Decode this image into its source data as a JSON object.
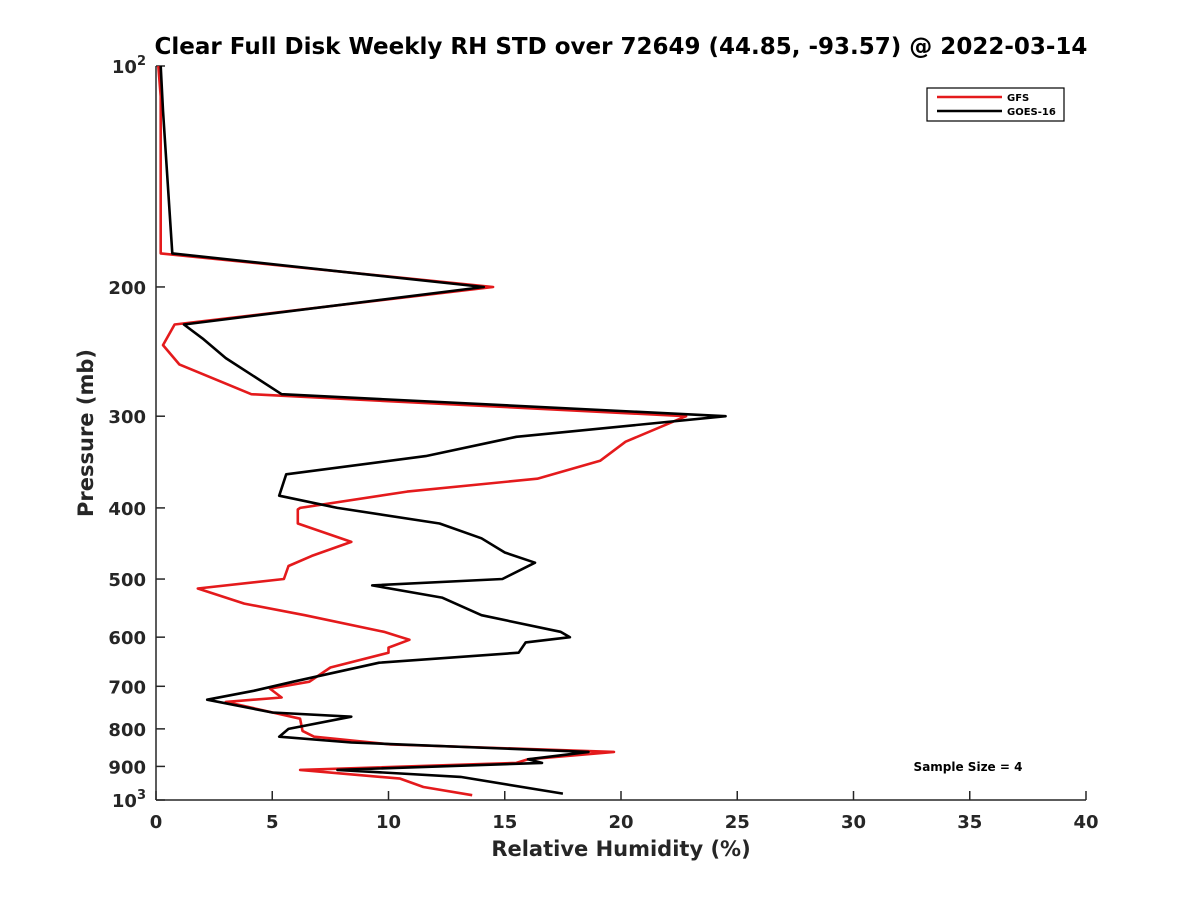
{
  "chart_data": {
    "type": "line",
    "title": "Clear Full Disk Weekly RH STD over 72649 (44.85, -93.57) @ 2022-03-14",
    "xlabel": "Relative Humidity (%)",
    "ylabel": "Pressure (mb)",
    "xlim": [
      0,
      40
    ],
    "ylim": [
      100,
      1000
    ],
    "y_scale": "log",
    "y_reversed": true,
    "x_ticks": [
      "0",
      "5",
      "10",
      "15",
      "20",
      "25",
      "30",
      "35",
      "40"
    ],
    "y_ticks": [
      {
        "value": 100,
        "base": "10",
        "exp": "2"
      },
      {
        "value": 200,
        "label": "200"
      },
      {
        "value": 300,
        "label": "300"
      },
      {
        "value": 400,
        "label": "400"
      },
      {
        "value": 500,
        "label": "500"
      },
      {
        "value": 600,
        "label": "600"
      },
      {
        "value": 700,
        "label": "700"
      },
      {
        "value": 800,
        "label": "800"
      },
      {
        "value": 900,
        "label": "900"
      },
      {
        "value": 1000,
        "base": "10",
        "exp": "3"
      }
    ],
    "grid": false,
    "legend_position": "top-right",
    "series": [
      {
        "name": "GFS",
        "color": "#e41a1c",
        "x": [
          0.1,
          0.2,
          0.2,
          14.5,
          0.8,
          0.3,
          1.0,
          4.1,
          22.8,
          20.2,
          19.1,
          16.4,
          10.8,
          6.2,
          6.1,
          6.1,
          8.4,
          6.7,
          5.7,
          5.5,
          1.8,
          3.8,
          6.4,
          9.8,
          10.9,
          10.0,
          10.0,
          7.5,
          6.6,
          4.9,
          5.4,
          3.0,
          6.2,
          6.3,
          6.8,
          10.1,
          19.7,
          16.0,
          15.5,
          6.2,
          10.5,
          11.5,
          13.6
        ],
        "y": [
          100,
          110,
          180,
          200,
          225,
          240,
          255,
          280,
          300,
          325,
          345,
          365,
          380,
          400,
          402,
          420,
          445,
          465,
          480,
          500,
          515,
          540,
          560,
          590,
          605,
          620,
          630,
          660,
          690,
          705,
          725,
          735,
          775,
          805,
          820,
          840,
          860,
          880,
          890,
          910,
          935,
          960,
          985
        ]
      },
      {
        "name": "GOES-16",
        "color": "#000000",
        "x": [
          0.2,
          0.3,
          0.7,
          14.1,
          1.2,
          2.0,
          3.0,
          5.4,
          24.5,
          15.5,
          11.6,
          5.6,
          5.3,
          7.8,
          12.2,
          14.0,
          15.0,
          16.3,
          14.9,
          9.3,
          12.3,
          14.0,
          17.4,
          17.8,
          15.9,
          15.6,
          9.6,
          5.9,
          4.2,
          2.2,
          5.0,
          8.4,
          5.7,
          5.3,
          8.4,
          18.6,
          16.0,
          16.6,
          7.8,
          13.1,
          17.5
        ],
        "y": [
          100,
          115,
          180,
          200,
          225,
          235,
          250,
          280,
          300,
          320,
          340,
          360,
          385,
          400,
          420,
          440,
          460,
          475,
          500,
          510,
          530,
          560,
          590,
          600,
          610,
          630,
          650,
          690,
          710,
          730,
          760,
          770,
          800,
          820,
          835,
          860,
          880,
          890,
          910,
          930,
          980
        ]
      }
    ],
    "annotations": [
      {
        "text": "Sample Size = 4"
      }
    ]
  }
}
